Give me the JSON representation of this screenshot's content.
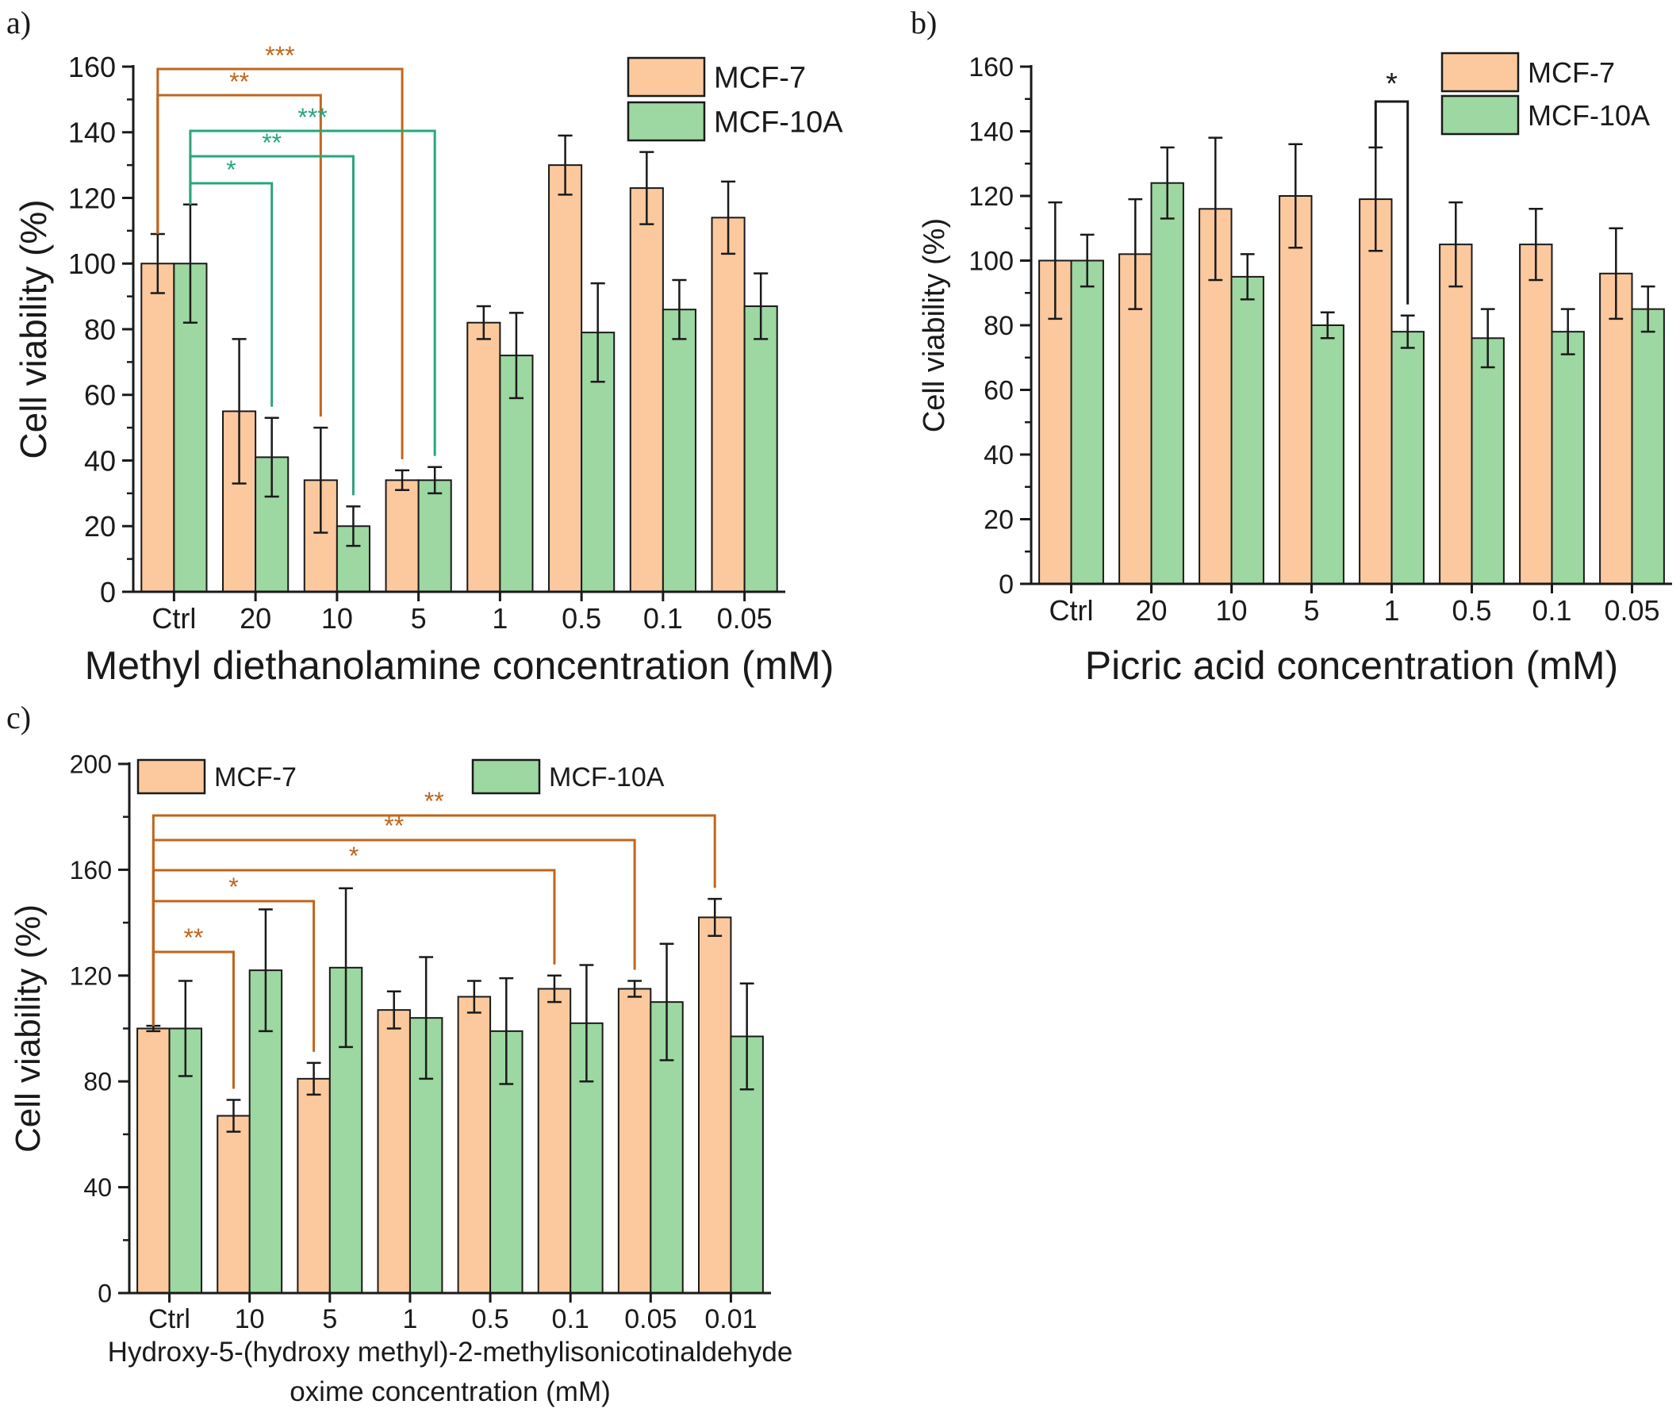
{
  "colors": {
    "mcf7_fill": "#fbc99d",
    "mcf10a_fill": "#9dd7a1",
    "sig_orange": "#c0651c",
    "sig_green": "#2aa57a",
    "sig_black": "#1a1a1a",
    "axis": "#1a1a1a"
  },
  "chart_data": [
    {
      "panel_label": "a)",
      "type": "bar",
      "categories": [
        "Ctrl",
        "20",
        "10",
        "5",
        "1",
        "0.5",
        "0.1",
        "0.05"
      ],
      "series": [
        {
          "name": "MCF-7",
          "color": "mcf7_fill",
          "values": [
            100,
            55,
            34,
            34,
            82,
            130,
            123,
            114
          ],
          "errors": [
            9,
            22,
            16,
            3,
            5,
            9,
            11,
            11
          ]
        },
        {
          "name": "MCF-10A",
          "color": "mcf10a_fill",
          "values": [
            100,
            41,
            20,
            34,
            72,
            79,
            86,
            87
          ],
          "errors": [
            18,
            12,
            6,
            4,
            13,
            15,
            9,
            10
          ]
        }
      ],
      "xlabel": "Methyl diethanolamine concentration (mM)",
      "ylabel": "Cell viability (%)",
      "ylim": [
        0,
        160
      ],
      "yticks": [
        0,
        20,
        40,
        60,
        80,
        100,
        120,
        140,
        160
      ],
      "legend": "top-right, stacked",
      "grid": false,
      "significance": [
        {
          "series": "MCF-7",
          "from": "Ctrl",
          "to": "5",
          "label": "***",
          "color": "sig_orange"
        },
        {
          "series": "MCF-7",
          "from": "Ctrl",
          "to": "10",
          "label": "**",
          "color": "sig_orange"
        },
        {
          "series": "MCF-10A",
          "from": "Ctrl",
          "to": "5",
          "label": "***",
          "color": "sig_green"
        },
        {
          "series": "MCF-10A",
          "from": "Ctrl",
          "to": "10",
          "label": "**",
          "color": "sig_green"
        },
        {
          "series": "MCF-10A",
          "from": "Ctrl",
          "to": "20",
          "label": "*",
          "color": "sig_green"
        }
      ]
    },
    {
      "panel_label": "b)",
      "type": "bar",
      "categories": [
        "Ctrl",
        "20",
        "10",
        "5",
        "1",
        "0.5",
        "0.1",
        "0.05"
      ],
      "series": [
        {
          "name": "MCF-7",
          "color": "mcf7_fill",
          "values": [
            100,
            102,
            116,
            120,
            119,
            105,
            105,
            96
          ],
          "errors": [
            18,
            17,
            22,
            16,
            16,
            13,
            11,
            14
          ]
        },
        {
          "name": "MCF-10A",
          "color": "mcf10a_fill",
          "values": [
            100,
            124,
            95,
            80,
            78,
            76,
            78,
            85
          ],
          "errors": [
            8,
            11,
            7,
            4,
            5,
            9,
            7,
            7
          ]
        }
      ],
      "xlabel": "Picric acid concentration (mM)",
      "ylabel": "Cell viability (%)",
      "ylim": [
        0,
        160
      ],
      "yticks": [
        0,
        20,
        40,
        60,
        80,
        100,
        120,
        140,
        160
      ],
      "legend": "top-right, stacked",
      "grid": false,
      "significance": [
        {
          "within": "1",
          "from_series": "MCF-7",
          "to_series": "MCF-10A",
          "label": "*",
          "color": "sig_black"
        }
      ]
    },
    {
      "panel_label": "c)",
      "type": "bar",
      "categories": [
        "Ctrl",
        "10",
        "5",
        "1",
        "0.5",
        "0.1",
        "0.05",
        "0.01"
      ],
      "series": [
        {
          "name": "MCF-7",
          "color": "mcf7_fill",
          "values": [
            100,
            67,
            81,
            107,
            112,
            115,
            115,
            142
          ],
          "errors": [
            1,
            6,
            6,
            7,
            6,
            5,
            3,
            7
          ]
        },
        {
          "name": "MCF-10A",
          "color": "mcf10a_fill",
          "values": [
            100,
            122,
            123,
            104,
            99,
            102,
            110,
            97
          ],
          "errors": [
            18,
            23,
            30,
            23,
            20,
            22,
            22,
            20
          ]
        }
      ],
      "xlabel": "Hydroxy-5-(hydroxy methyl)-2-methylisonicotinaldehyde",
      "xlabel2": "oxime concentration (mM)",
      "ylabel": "Cell viability (%)",
      "ylim": [
        0,
        200
      ],
      "yticks": [
        0,
        40,
        80,
        120,
        160,
        200
      ],
      "legend": "top, horizontal",
      "grid": false,
      "significance": [
        {
          "series": "MCF-7",
          "from": "Ctrl",
          "to": "0.01",
          "label": "**",
          "color": "sig_orange"
        },
        {
          "series": "MCF-7",
          "from": "Ctrl",
          "to": "0.05",
          "label": "**",
          "color": "sig_orange"
        },
        {
          "series": "MCF-7",
          "from": "Ctrl",
          "to": "0.1",
          "label": "*",
          "color": "sig_orange"
        },
        {
          "series": "MCF-7",
          "from": "Ctrl",
          "to": "5",
          "label": "*",
          "color": "sig_orange"
        },
        {
          "series": "MCF-7",
          "from": "Ctrl",
          "to": "10",
          "label": "**",
          "color": "sig_orange"
        }
      ]
    }
  ]
}
